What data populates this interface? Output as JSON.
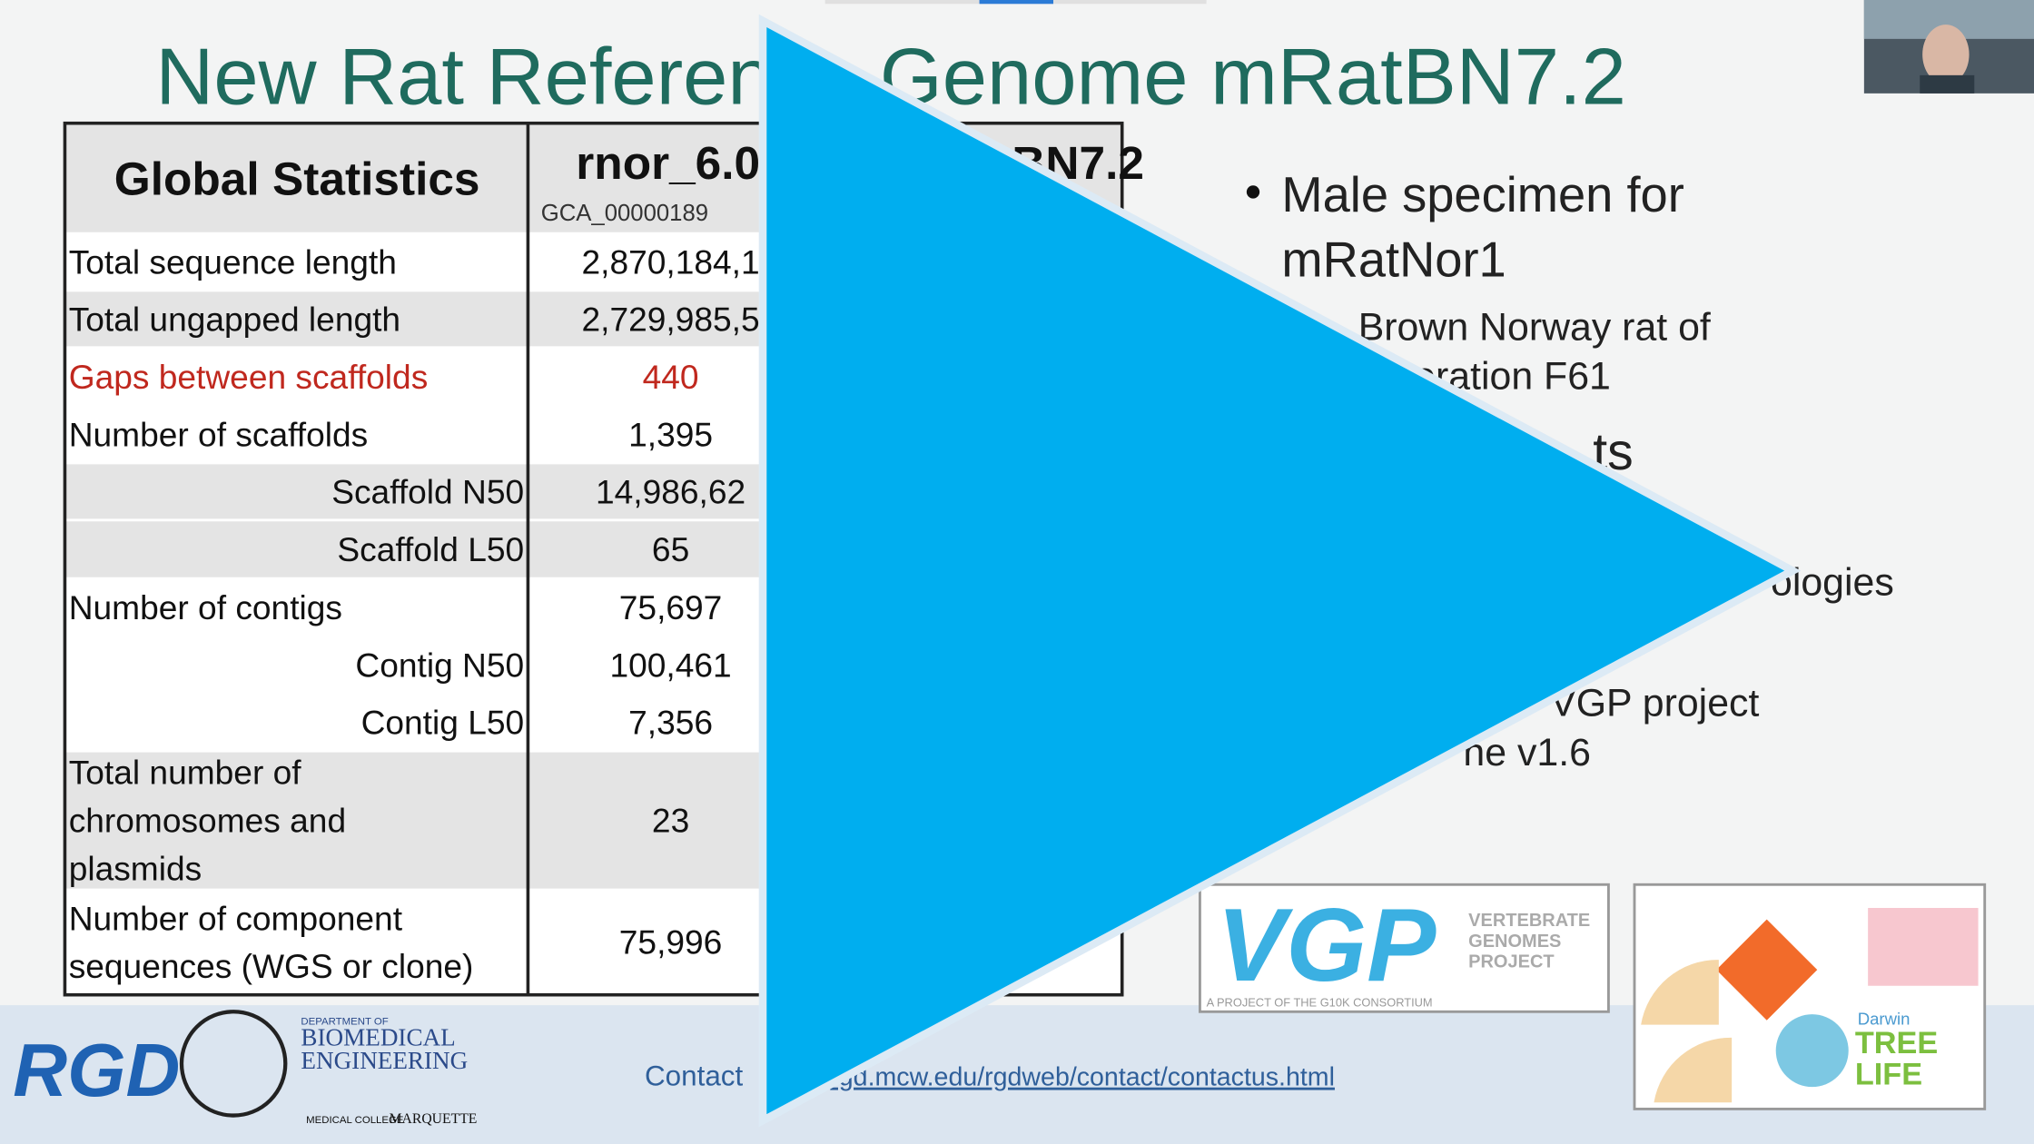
{
  "slide": {
    "title": "New Rat Reference Genome mRatBN7.2",
    "table": {
      "header": [
        "Global Statistics",
        "rnor_6.0",
        "mRatBN7.2"
      ],
      "header_sub": "GCA_00000189",
      "rows": [
        {
          "label": "Total sequence length",
          "value": "2,870,184,1"
        },
        {
          "label": "Total ungapped length",
          "value": "2,729,985,5"
        },
        {
          "label": "Gaps between scaffolds",
          "value": "440"
        },
        {
          "label": "Number of scaffolds",
          "value": "1,395"
        },
        {
          "label": "Scaffold N50",
          "value": "14,986,62"
        },
        {
          "label": "Scaffold L50",
          "value": "65"
        },
        {
          "label": "Number of contigs",
          "value": "75,697"
        },
        {
          "label": "Contig N50",
          "value": "100,461"
        },
        {
          "label": "Contig L50",
          "value": "7,356"
        },
        {
          "label": [
            "Total number of",
            "chromosomes and",
            "plasmids"
          ],
          "value": "23"
        },
        {
          "label": [
            "Number of component",
            "sequences (WGS or clone)"
          ],
          "value": "75,996"
        }
      ]
    },
    "bullets": [
      "Male specimen for",
      "mRatNor1",
      "Brown Norway rat of",
      "eration F61",
      "ts",
      "ologies",
      "VGP project",
      "ne v1.6"
    ],
    "vgp_logo": [
      "VGP",
      "VERTEBRATE",
      "GENOMES",
      "PROJECT",
      "A PROJECT OF THE G10K CONSORTIUM"
    ],
    "dtol_logo": [
      "Darwin",
      "TREE",
      "LIFE"
    ],
    "footer": {
      "contact": "Contact",
      "url": "rgd.mcw.edu/rgdweb/contact/contactus.html",
      "logos": [
        "RGD",
        "DEPARTMENT OF",
        "BIOMEDICAL",
        "ENGINEERING",
        "MEDICAL COLLEGE",
        "MARQUETTE"
      ]
    }
  }
}
